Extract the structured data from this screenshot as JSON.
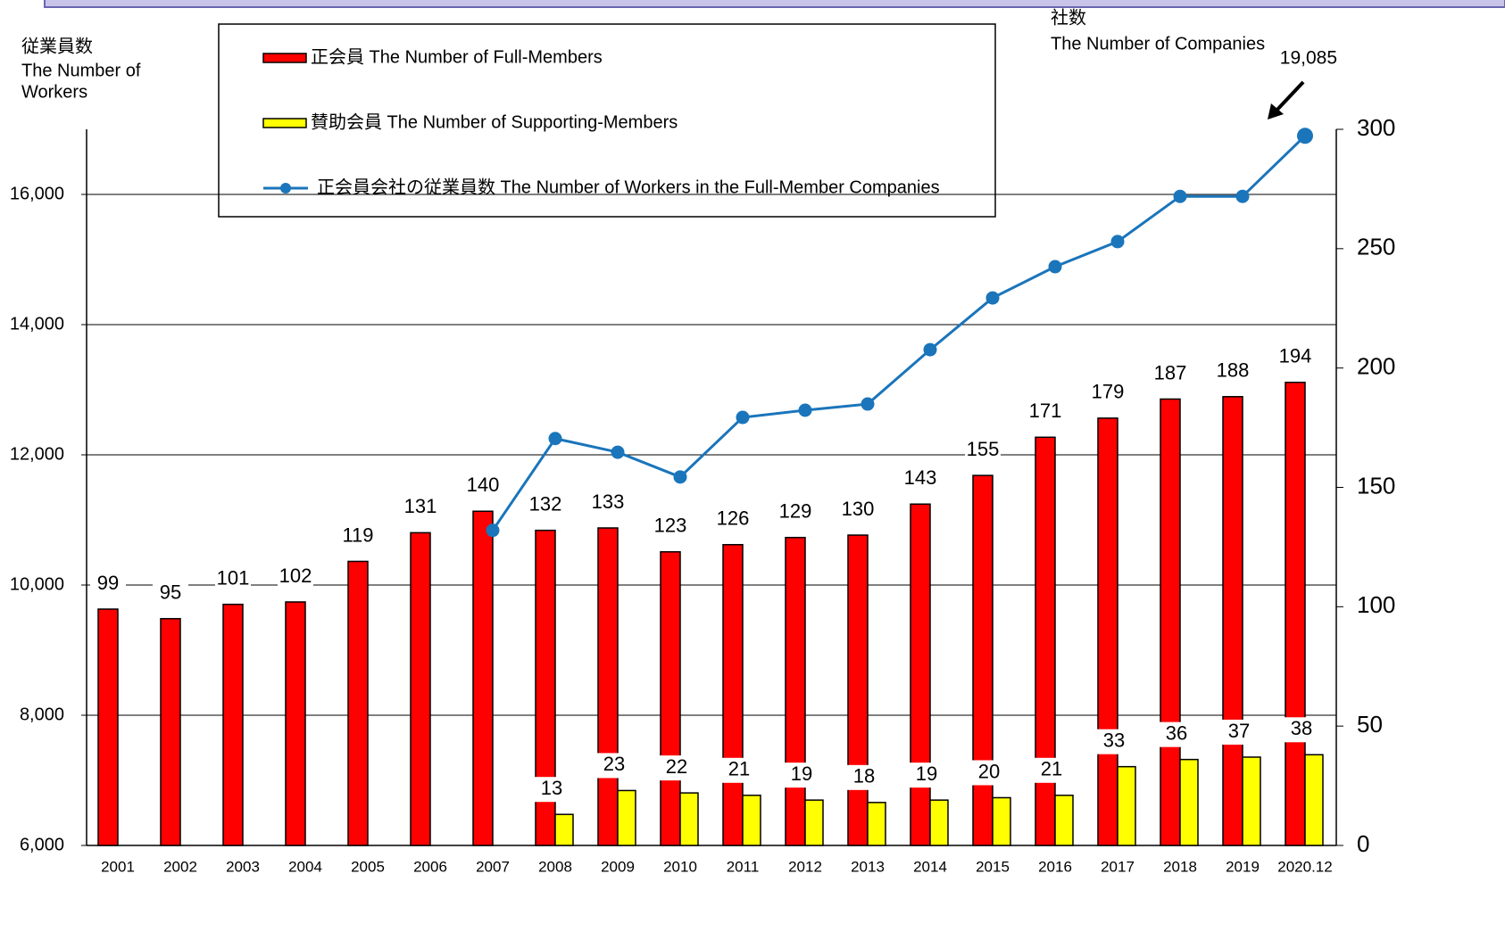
{
  "chart_data": {
    "type": "bar",
    "y_label": [
      "従業員数",
      "The Number of",
      "Workers"
    ],
    "y2_label": [
      "社数",
      "The Number of Companies"
    ],
    "annotation": "19,085",
    "categories": [
      "2001",
      "2002",
      "2003",
      "2004",
      "2005",
      "2006",
      "2007",
      "2008",
      "2009",
      "2010",
      "2011",
      "2012",
      "2013",
      "2014",
      "2015",
      "2016",
      "2017",
      "2018",
      "2019",
      "2020.12"
    ],
    "series": [
      {
        "name": "正会員 The Number of Full-Members",
        "type": "bar",
        "axis": "y2",
        "color": "#ff0000",
        "values": [
          99,
          95,
          101,
          102,
          119,
          131,
          140,
          132,
          133,
          123,
          126,
          129,
          130,
          143,
          155,
          171,
          179,
          187,
          188,
          194
        ]
      },
      {
        "name": "賛助会員 The Number of Supporting-Members",
        "type": "bar",
        "axis": "y2",
        "color": "#ffff00",
        "values": [
          null,
          null,
          null,
          null,
          null,
          null,
          null,
          13,
          23,
          22,
          21,
          19,
          18,
          19,
          20,
          21,
          33,
          36,
          37,
          38
        ]
      },
      {
        "name": "正会員会社の従業員数 The Number of Workers in the Full-Member Companies",
        "type": "line",
        "axis": "y",
        "color": "#1a75bb",
        "values": [
          null,
          null,
          null,
          null,
          null,
          null,
          10840,
          12250,
          12040,
          11660,
          12575,
          12685,
          12780,
          13615,
          14410,
          14890,
          15275,
          15970,
          15970,
          16900
        ]
      }
    ],
    "ylim": [
      6000,
      17000
    ],
    "yticks": [
      {
        "value": 6000,
        "label": "6,000"
      },
      {
        "value": 8000,
        "label": "8,000"
      },
      {
        "value": 10000,
        "label": "10,000"
      },
      {
        "value": 12000,
        "label": "12,000"
      },
      {
        "value": 14000,
        "label": "14,000"
      },
      {
        "value": 16000,
        "label": "16,000"
      }
    ],
    "y2lim": [
      0,
      300
    ],
    "y2ticks": [
      0,
      50,
      100,
      150,
      200,
      250,
      300
    ],
    "grid": true
  }
}
